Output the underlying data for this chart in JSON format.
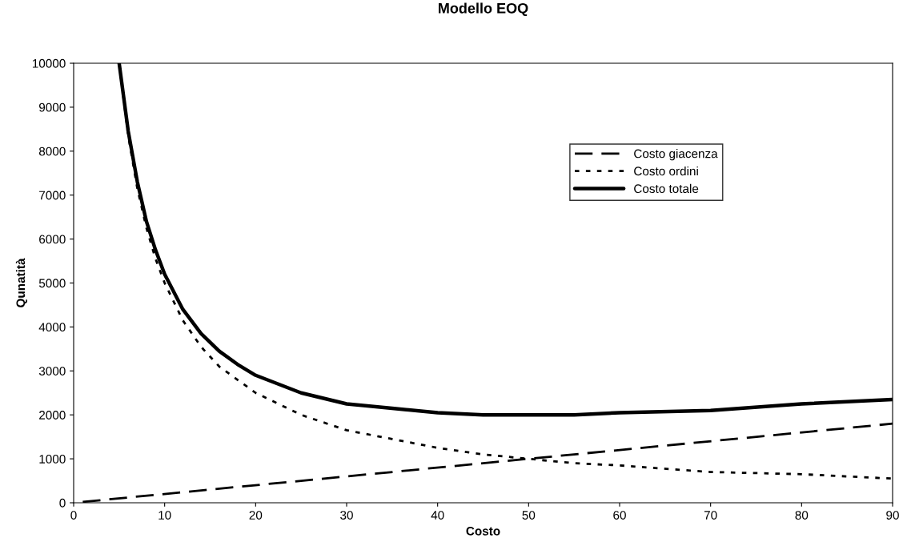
{
  "chart_data": {
    "type": "line",
    "title": "Modello EOQ",
    "xlabel": "Costo",
    "ylabel": "Qunatità",
    "xlim": [
      0,
      90
    ],
    "xticks": [
      0,
      10,
      20,
      30,
      40,
      50,
      60,
      70,
      80,
      90
    ],
    "ylim": [
      0,
      10000
    ],
    "yticks": [
      0,
      1000,
      2000,
      3000,
      4000,
      5000,
      6000,
      7000,
      8000,
      9000,
      10000
    ],
    "grid": false,
    "legend": "top right",
    "marker": "none",
    "series": [
      {
        "name": "Costo giacenza",
        "color": "#000000",
        "line_style": "dashed",
        "x": [
          1,
          45,
          90
        ],
        "values": [
          20,
          900,
          1800
        ]
      },
      {
        "name": "Costo ordini",
        "color": "#000000",
        "line_style": "dotted",
        "x": [
          5,
          6,
          7,
          8,
          9,
          10,
          12,
          14,
          16,
          18,
          20,
          25,
          30,
          35,
          40,
          45,
          50,
          55,
          60,
          70,
          80,
          90
        ],
        "values": [
          10000,
          8350,
          7150,
          6250,
          5550,
          5000,
          4150,
          3550,
          3100,
          2800,
          2500,
          2000,
          1650,
          1450,
          1250,
          1100,
          1000,
          900,
          850,
          700,
          650,
          550
        ]
      },
      {
        "name": "Costo totale",
        "color": "#000000",
        "line_style": "solid",
        "x": [
          5,
          6,
          7,
          8,
          9,
          10,
          12,
          14,
          16,
          18,
          20,
          25,
          30,
          35,
          40,
          45,
          50,
          55,
          60,
          70,
          80,
          90
        ],
        "values": [
          10000,
          8450,
          7300,
          6400,
          5750,
          5200,
          4400,
          3850,
          3450,
          3150,
          2900,
          2500,
          2250,
          2150,
          2050,
          2000,
          2000,
          2000,
          2050,
          2100,
          2250,
          2350
        ]
      }
    ]
  }
}
